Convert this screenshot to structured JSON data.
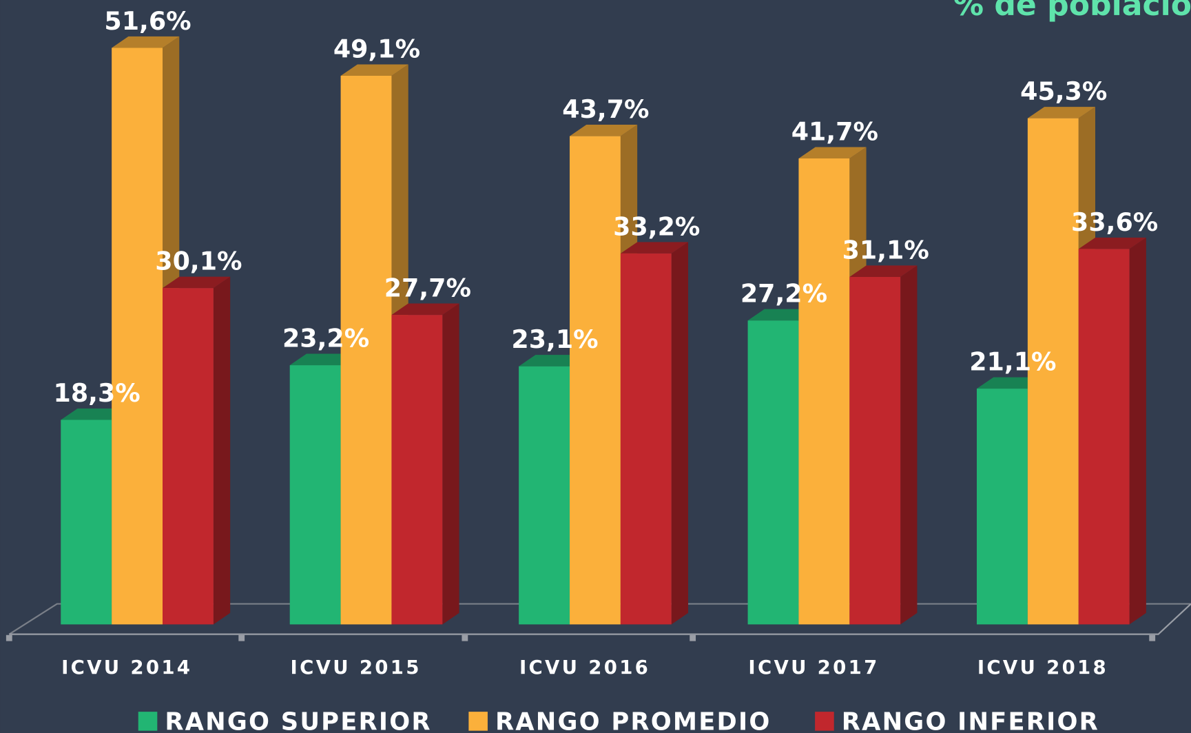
{
  "chart_data": {
    "type": "bar3d",
    "title": "% de poblacio",
    "categories": [
      "ICVU 2014",
      "ICVU 2015",
      "ICVU 2016",
      "ICVU 2017",
      "ICVU 2018"
    ],
    "series": [
      {
        "name": "RANGO SUPERIOR",
        "color": "#22b573",
        "values": [
          18.3,
          23.2,
          23.1,
          27.2,
          21.1
        ],
        "value_labels": [
          "18,3%",
          "23,2%",
          "23,1%",
          "27,2%",
          "21,1%"
        ]
      },
      {
        "name": "RANGO PROMEDIO",
        "color": "#fbb03b",
        "values": [
          51.6,
          49.1,
          43.7,
          41.7,
          45.3
        ],
        "value_labels": [
          "51,6%",
          "49,1%",
          "43,7%",
          "41,7%",
          "45,3%"
        ]
      },
      {
        "name": "RANGO INFERIOR",
        "color": "#c1272d",
        "values": [
          30.1,
          27.7,
          33.2,
          31.1,
          33.6
        ],
        "value_labels": [
          "30,1%",
          "27,7%",
          "33,2%",
          "31,1%",
          "33,6%"
        ]
      }
    ],
    "ylim": [
      0,
      55
    ],
    "legend": "bottom"
  }
}
